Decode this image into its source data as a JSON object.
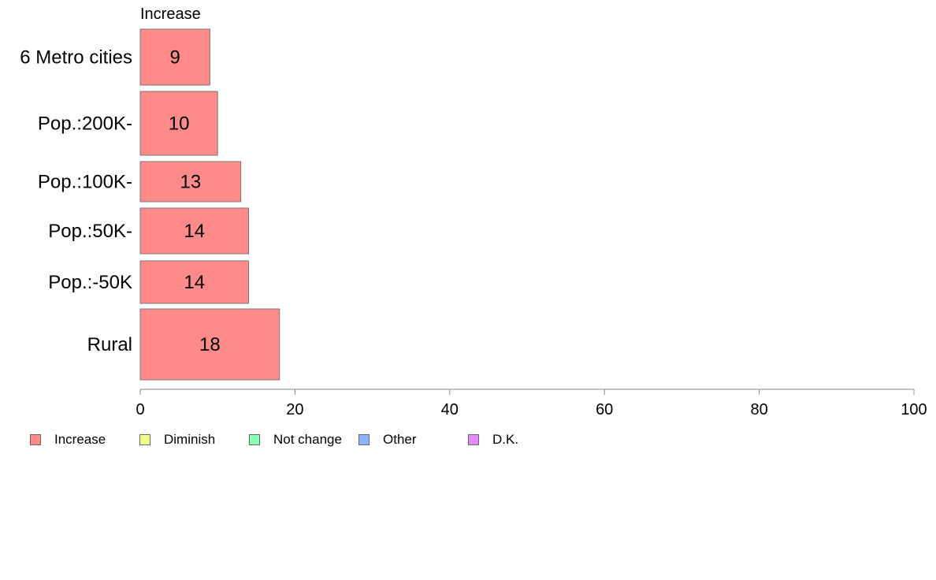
{
  "chart_data": {
    "type": "bar",
    "orientation": "horizontal",
    "series_heading": "Increase",
    "categories": [
      "6 Metro cities",
      "Pop.:200K-",
      "Pop.:100K-",
      "Pop.:50K-",
      "Pop.:-50K",
      "Rural"
    ],
    "series": [
      {
        "name": "Increase",
        "values": [
          9,
          10,
          13,
          14,
          14,
          18
        ],
        "color": "#ff8a8a"
      }
    ],
    "data_labels": [
      "9",
      "10",
      "13",
      "14",
      "14",
      "18"
    ],
    "xlim": [
      0,
      100
    ],
    "x_ticks": [
      0,
      20,
      40,
      60,
      80,
      100
    ],
    "x_tick_labels": [
      "0",
      "20",
      "40",
      "60",
      "80",
      "100"
    ],
    "grid": false,
    "legend_position": "bottom-left"
  },
  "legend": [
    {
      "label": "Increase",
      "color": "#ff8a8a"
    },
    {
      "label": "Diminish",
      "color": "#f2ff8a"
    },
    {
      "label": "Not change",
      "color": "#8affb8"
    },
    {
      "label": "Other",
      "color": "#8ab4ff"
    },
    {
      "label": "D.K.",
      "color": "#e58aff"
    }
  ]
}
